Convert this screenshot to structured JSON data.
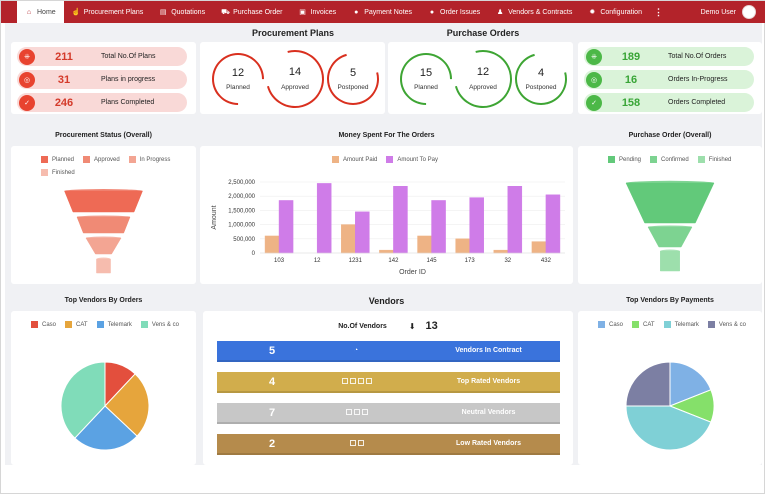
{
  "nav": {
    "tabs": [
      {
        "label": "Home",
        "icon": "home-icon",
        "glyph": "⌂",
        "active": true
      },
      {
        "label": "Procurement Plans",
        "icon": "thumbs-up-icon",
        "glyph": "☝",
        "active": false
      },
      {
        "label": "Quotations",
        "icon": "clipboard-icon",
        "glyph": "▤",
        "active": false
      },
      {
        "label": "Purchase Order",
        "icon": "truck-icon",
        "glyph": "⛟",
        "active": false
      },
      {
        "label": "Invoices",
        "icon": "invoice-icon",
        "glyph": "▣",
        "active": false
      },
      {
        "label": "Payment Notes",
        "icon": "coin-icon",
        "glyph": "●",
        "active": false
      },
      {
        "label": "Order Issues",
        "icon": "issue-icon",
        "glyph": "●",
        "active": false
      },
      {
        "label": "Vendors & Contracts",
        "icon": "vendor-icon",
        "glyph": "♟",
        "active": false
      },
      {
        "label": "Configuration",
        "icon": "gear-icon",
        "glyph": "✹",
        "active": false
      }
    ],
    "more_glyph": "⋮",
    "user_name": "Demo User"
  },
  "plans_stats": [
    {
      "value": "211",
      "label": "Total No.Of Plans",
      "glyph": "⁜"
    },
    {
      "value": "31",
      "label": "Plans in progress",
      "glyph": "◎"
    },
    {
      "value": "246",
      "label": "Plans Completed",
      "glyph": "✓"
    }
  ],
  "procurement_plans": {
    "title": "Procurement Plans",
    "rings": [
      {
        "value": "12",
        "label": "Planned"
      },
      {
        "value": "14",
        "label": "Approved"
      },
      {
        "value": "5",
        "label": "Postponed"
      }
    ]
  },
  "purchase_orders": {
    "title": "Purchase Orders",
    "rings": [
      {
        "value": "15",
        "label": "Planned"
      },
      {
        "value": "12",
        "label": "Approved"
      },
      {
        "value": "4",
        "label": "Postponed"
      }
    ]
  },
  "orders_stats": [
    {
      "value": "189",
      "label": "Total No.Of Orders",
      "glyph": "⁜"
    },
    {
      "value": "16",
      "label": "Orders In-Progress",
      "glyph": "◎"
    },
    {
      "value": "158",
      "label": "Orders Completed",
      "glyph": "✓"
    }
  ],
  "vendors": {
    "title": "Vendors",
    "count_label": "No.Of Vendors",
    "count_glyph": "⬇",
    "count": "13",
    "rows": [
      {
        "value": "5",
        "label": "Vendors In Contract",
        "color": "#3a73dc",
        "icon_count": 0,
        "glyph": "◔"
      },
      {
        "value": "4",
        "label": "Top Rated Vendors",
        "color": "#d1ad4c",
        "icon_count": 4,
        "glyph": ""
      },
      {
        "value": "7",
        "label": "Neutral Vendors",
        "color": "#c7c7c7",
        "icon_count": 3,
        "glyph": ""
      },
      {
        "value": "2",
        "label": "Low Rated Vendors",
        "color": "#b58b4c",
        "icon_count": 2,
        "glyph": ""
      }
    ]
  },
  "chart_data": [
    {
      "type": "funnel",
      "title": "Procurement Status (Overall)",
      "categories": [
        "Planned",
        "Approved",
        "In Progress",
        "Finished"
      ],
      "colors": [
        "#ee6a55",
        "#f08a75",
        "#f3a593",
        "#f6bcae"
      ],
      "values": [
        100,
        68,
        45,
        18
      ],
      "legend": "top"
    },
    {
      "type": "bar",
      "title": "Money Spent For The Orders",
      "xlabel": "Order ID",
      "ylabel": "Amount",
      "categories": [
        "103",
        "12",
        "1231",
        "142",
        "145",
        "173",
        "32",
        "432"
      ],
      "series": [
        {
          "name": "Amount Paid",
          "color": "#eeb385",
          "values": [
            600000,
            0,
            1000000,
            100000,
            600000,
            500000,
            100000,
            400000
          ]
        },
        {
          "name": "Amount To Pay",
          "color": "#cf7ce8",
          "values": [
            1850000,
            2450000,
            1450000,
            2350000,
            1850000,
            1950000,
            2350000,
            2050000
          ]
        }
      ],
      "yticks": [
        "0",
        "500,000",
        "1,000,000",
        "1,500,000",
        "2,000,000",
        "2,500,000"
      ],
      "ylim": [
        0,
        2500000
      ],
      "grid": true,
      "legend": "top"
    },
    {
      "type": "funnel",
      "title": "Purchase Order (Overall)",
      "categories": [
        "Pending",
        "Confirmed",
        "Finished"
      ],
      "colors": [
        "#62c97a",
        "#7dd391",
        "#9ddfac"
      ],
      "values": [
        100,
        50,
        22
      ],
      "legend": "top"
    },
    {
      "type": "pie",
      "title": "Top Vendors By Orders",
      "categories": [
        "Caso",
        "CAT",
        "Telemark",
        "Vens & co"
      ],
      "colors": [
        "#e34f3d",
        "#e6a53c",
        "#5ba2e3",
        "#80dcb9"
      ],
      "values": [
        12,
        25,
        25,
        38
      ],
      "legend": "top"
    },
    {
      "type": "pie",
      "title": "Top Vendors By Payments",
      "categories": [
        "Caso",
        "CAT",
        "Telemark",
        "Vens & co"
      ],
      "colors": [
        "#7fb1e5",
        "#85e06a",
        "#7fd0d6",
        "#7c7fa3"
      ],
      "values": [
        19,
        12,
        44,
        25
      ],
      "legend": "top"
    }
  ]
}
